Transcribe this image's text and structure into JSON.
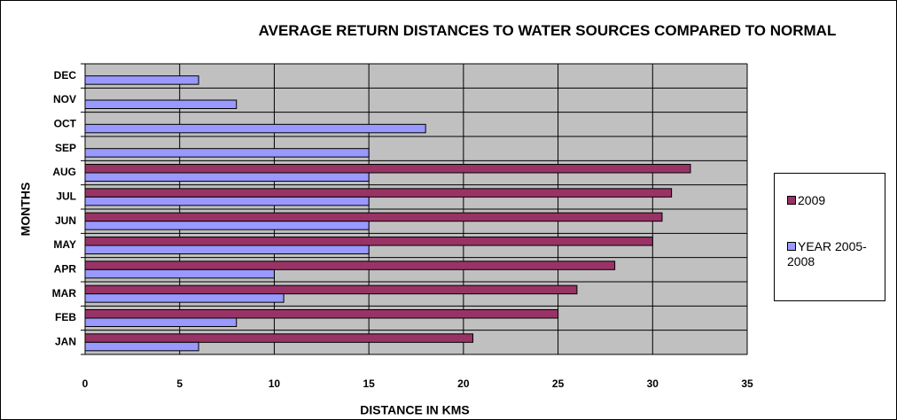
{
  "chart_data": {
    "type": "bar",
    "orientation": "horizontal",
    "title": "AVERAGE RETURN DISTANCES TO WATER SOURCES COMPARED TO NORMAL",
    "xlabel": "DISTANCE IN KMS",
    "ylabel": "MONTHS",
    "categories": [
      "JAN",
      "FEB",
      "MAR",
      "APR",
      "MAY",
      "JUN",
      "JUL",
      "AUG",
      "SEP",
      "OCT",
      "NOV",
      "DEC"
    ],
    "series": [
      {
        "name": "2009",
        "color": "#993366",
        "values": [
          20.5,
          25,
          26,
          28,
          30,
          30.5,
          31,
          32,
          null,
          null,
          null,
          null
        ]
      },
      {
        "name": "YEAR 2005-2008",
        "color": "#9999ff",
        "values": [
          6,
          8,
          10.5,
          10,
          15,
          15,
          15,
          15,
          15,
          18,
          8,
          6
        ]
      }
    ],
    "xlim": [
      0,
      35
    ],
    "xticks": [
      0,
      5,
      10,
      15,
      20,
      25,
      30,
      35
    ],
    "grid": true,
    "legend": "right"
  }
}
